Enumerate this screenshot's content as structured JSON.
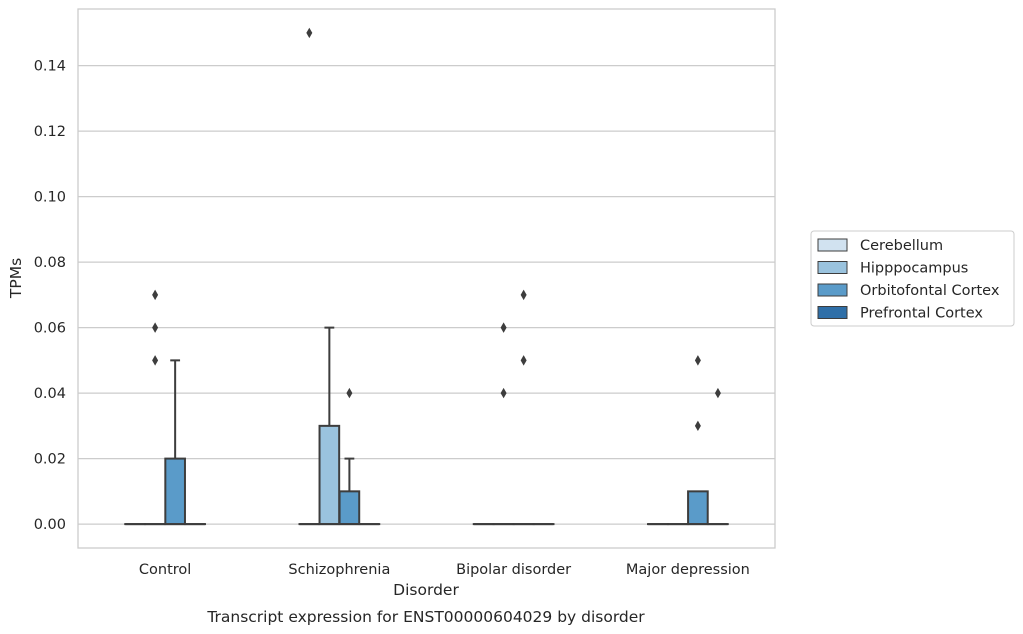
{
  "chart_data": {
    "type": "box",
    "title": "",
    "caption": "Transcript expression for ENST00000604029 by disorder",
    "xlabel": "Disorder",
    "ylabel": "TPMs",
    "ylim": [
      -0.0073,
      0.1573
    ],
    "yticks": [
      "0.00",
      "0.02",
      "0.04",
      "0.06",
      "0.08",
      "0.10",
      "0.12",
      "0.14"
    ],
    "grid": "horizontal",
    "legend_position": "right",
    "categories": [
      "Control",
      "Schizophrenia",
      "Bipolar disorder",
      "Major depression"
    ],
    "series": [
      {
        "name": "Cerebellum",
        "color": "#d1e2f0",
        "boxes": [
          {
            "q1": 0.0,
            "median": 0.0,
            "q3": 0.0,
            "whisker_low": 0.0,
            "whisker_high": 0.0,
            "outliers": []
          },
          {
            "q1": 0.0,
            "median": 0.0,
            "q3": 0.0,
            "whisker_low": 0.0,
            "whisker_high": 0.0,
            "outliers": [
              0.15
            ]
          },
          {
            "q1": 0.0,
            "median": 0.0,
            "q3": 0.0,
            "whisker_low": 0.0,
            "whisker_high": 0.0,
            "outliers": []
          },
          {
            "q1": 0.0,
            "median": 0.0,
            "q3": 0.0,
            "whisker_low": 0.0,
            "whisker_high": 0.0,
            "outliers": []
          }
        ]
      },
      {
        "name": "Hipppocampus",
        "color": "#9ac3de",
        "boxes": [
          {
            "q1": 0.0,
            "median": 0.0,
            "q3": 0.0,
            "whisker_low": 0.0,
            "whisker_high": 0.0,
            "outliers": [
              0.05,
              0.06,
              0.07
            ]
          },
          {
            "q1": 0.0,
            "median": 0.0,
            "q3": 0.03,
            "whisker_low": 0.0,
            "whisker_high": 0.06,
            "outliers": []
          },
          {
            "q1": 0.0,
            "median": 0.0,
            "q3": 0.0,
            "whisker_low": 0.0,
            "whisker_high": 0.0,
            "outliers": [
              0.04,
              0.06
            ]
          },
          {
            "q1": 0.0,
            "median": 0.0,
            "q3": 0.0,
            "whisker_low": 0.0,
            "whisker_high": 0.0,
            "outliers": []
          }
        ]
      },
      {
        "name": "Orbitofontal Cortex",
        "color": "#5a9bc9",
        "boxes": [
          {
            "q1": 0.0,
            "median": 0.0,
            "q3": 0.02,
            "whisker_low": 0.0,
            "whisker_high": 0.05,
            "outliers": []
          },
          {
            "q1": 0.0,
            "median": 0.0,
            "q3": 0.01,
            "whisker_low": 0.0,
            "whisker_high": 0.02,
            "outliers": [
              0.04
            ]
          },
          {
            "q1": 0.0,
            "median": 0.0,
            "q3": 0.0,
            "whisker_low": 0.0,
            "whisker_high": 0.0,
            "outliers": [
              0.05,
              0.07
            ]
          },
          {
            "q1": 0.0,
            "median": 0.0,
            "q3": 0.01,
            "whisker_low": 0.0,
            "whisker_high": 0.01,
            "outliers": [
              0.03,
              0.05
            ]
          }
        ]
      },
      {
        "name": "Prefrontal Cortex",
        "color": "#2f6fa8",
        "boxes": [
          {
            "q1": 0.0,
            "median": 0.0,
            "q3": 0.0,
            "whisker_low": 0.0,
            "whisker_high": 0.0,
            "outliers": []
          },
          {
            "q1": 0.0,
            "median": 0.0,
            "q3": 0.0,
            "whisker_low": 0.0,
            "whisker_high": 0.0,
            "outliers": []
          },
          {
            "q1": 0.0,
            "median": 0.0,
            "q3": 0.0,
            "whisker_low": 0.0,
            "whisker_high": 0.0,
            "outliers": []
          },
          {
            "q1": 0.0,
            "median": 0.0,
            "q3": 0.0,
            "whisker_low": 0.0,
            "whisker_high": 0.0,
            "outliers": [
              0.04
            ]
          }
        ]
      }
    ]
  }
}
